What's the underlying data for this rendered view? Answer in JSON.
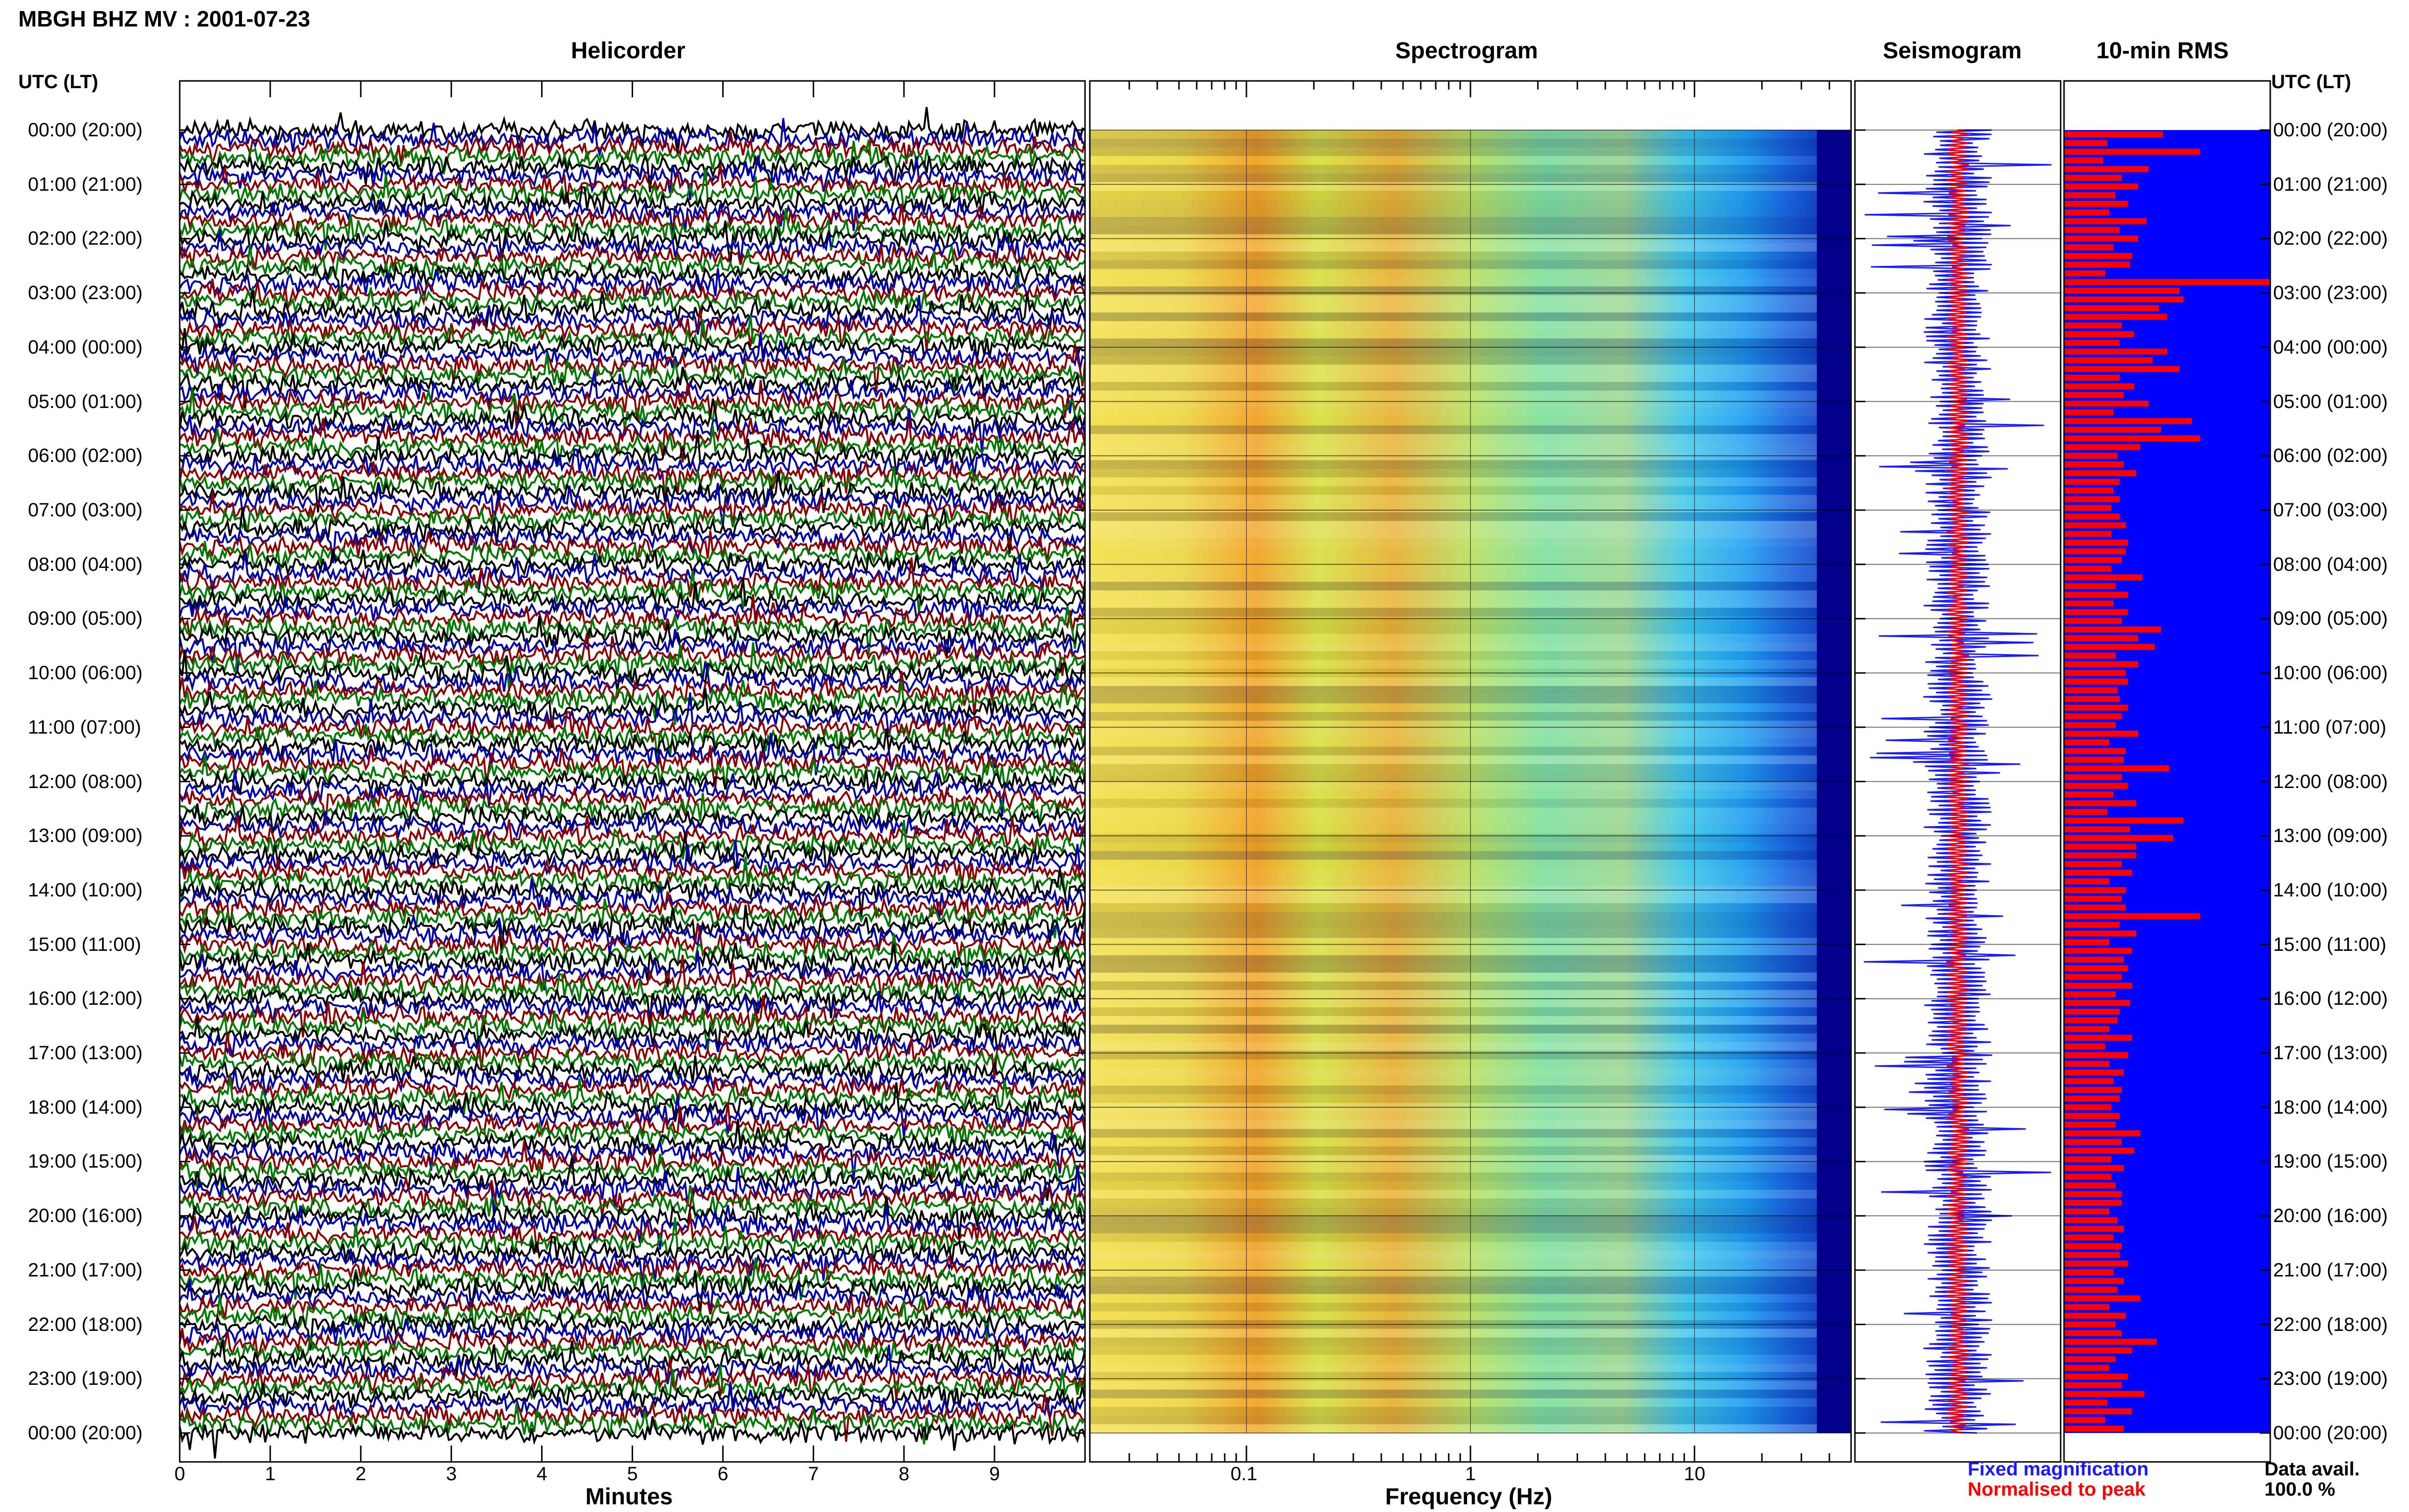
{
  "header": {
    "title": "MBGH BHZ MV : 2001-07-23"
  },
  "panels": {
    "helicorder": "Helicorder",
    "spectrogram": "Spectrogram",
    "seismogram": "Seismogram",
    "rms": "10-min RMS"
  },
  "axis_titles": {
    "left_time": "UTC (LT)",
    "right_time": "UTC (LT)",
    "minutes": "Minutes",
    "frequency": "Frequency (Hz)"
  },
  "legend": {
    "fixed": "Fixed magnification",
    "normalised": "Normalised to peak",
    "fixed_color": "#1a1aff",
    "normalised_color": "#ff0000"
  },
  "data_availability": {
    "label": "Data avail.",
    "value": "100.0 %"
  },
  "colors": {
    "trace_cycle": [
      "#000000",
      "#0000aa",
      "#8b0000",
      "#007a00"
    ],
    "spec_bg": "#00008b",
    "rms_bg": "#0000ff",
    "rms_bar": "#ff0000"
  },
  "chart_data": [
    {
      "type": "line",
      "panel": "helicorder",
      "xlabel": "Minutes",
      "xlim": [
        0,
        10
      ],
      "x_ticks": [
        0,
        1,
        2,
        3,
        4,
        5,
        6,
        7,
        8,
        9
      ],
      "rows_per_hour": 6,
      "time_labels": [
        "00:00 (20:00)",
        "01:00 (21:00)",
        "02:00 (22:00)",
        "03:00 (23:00)",
        "04:00 (00:00)",
        "05:00 (01:00)",
        "06:00 (02:00)",
        "07:00 (03:00)",
        "08:00 (04:00)",
        "09:00 (05:00)",
        "10:00 (06:00)",
        "11:00 (07:00)",
        "12:00 (08:00)",
        "13:00 (09:00)",
        "14:00 (10:00)",
        "15:00 (11:00)",
        "16:00 (12:00)",
        "17:00 (13:00)",
        "18:00 (14:00)",
        "19:00 (15:00)",
        "20:00 (16:00)",
        "21:00 (17:00)",
        "22:00 (18:00)",
        "23:00 (19:00)",
        "00:00 (20:00)"
      ]
    },
    {
      "type": "heatmap",
      "panel": "spectrogram",
      "xlabel": "Frequency (Hz)",
      "x_scale": "log",
      "xlim": [
        0.02,
        50
      ],
      "x_ticks": [
        0.1,
        1,
        10
      ],
      "x_tick_labels": [
        "0.1",
        "1",
        "10"
      ]
    },
    {
      "type": "line",
      "panel": "seismogram",
      "series": [
        {
          "name": "Fixed magnification",
          "color": "#1a1aff"
        },
        {
          "name": "Normalised to peak",
          "color": "#ff0000"
        }
      ]
    },
    {
      "type": "bar",
      "panel": "rms",
      "orientation": "horizontal",
      "interval_minutes": 10,
      "values": [
        0.48,
        0.21,
        0.66,
        0.19,
        0.41,
        0.28,
        0.36,
        0.25,
        0.31,
        0.22,
        0.4,
        0.27,
        0.36,
        0.24,
        0.33,
        0.32,
        0.2,
        1.0,
        0.56,
        0.58,
        0.46,
        0.5,
        0.28,
        0.34,
        0.27,
        0.5,
        0.43,
        0.56,
        0.27,
        0.34,
        0.29,
        0.41,
        0.24,
        0.62,
        0.47,
        0.66,
        0.37,
        0.26,
        0.29,
        0.35,
        0.27,
        0.24,
        0.27,
        0.23,
        0.27,
        0.3,
        0.23,
        0.31,
        0.3,
        0.28,
        0.23,
        0.38,
        0.25,
        0.31,
        0.24,
        0.31,
        0.28,
        0.47,
        0.36,
        0.44,
        0.25,
        0.36,
        0.3,
        0.31,
        0.26,
        0.27,
        0.31,
        0.28,
        0.25,
        0.36,
        0.22,
        0.3,
        0.29,
        0.51,
        0.28,
        0.31,
        0.24,
        0.35,
        0.21,
        0.58,
        0.32,
        0.53,
        0.35,
        0.35,
        0.28,
        0.33,
        0.22,
        0.3,
        0.28,
        0.3,
        0.66,
        0.27,
        0.35,
        0.22,
        0.33,
        0.29,
        0.31,
        0.28,
        0.33,
        0.25,
        0.32,
        0.27,
        0.26,
        0.22,
        0.33,
        0.2,
        0.31,
        0.22,
        0.29,
        0.24,
        0.28,
        0.27,
        0.23,
        0.27,
        0.25,
        0.37,
        0.28,
        0.34,
        0.23,
        0.29,
        0.23,
        0.25,
        0.28,
        0.28,
        0.22,
        0.26,
        0.29,
        0.24,
        0.28,
        0.27,
        0.31,
        0.24,
        0.29,
        0.26,
        0.37,
        0.22,
        0.3,
        0.25,
        0.28,
        0.45,
        0.33,
        0.25,
        0.22,
        0.31,
        0.28,
        0.39,
        0.21,
        0.33,
        0.2,
        0.29
      ]
    }
  ]
}
